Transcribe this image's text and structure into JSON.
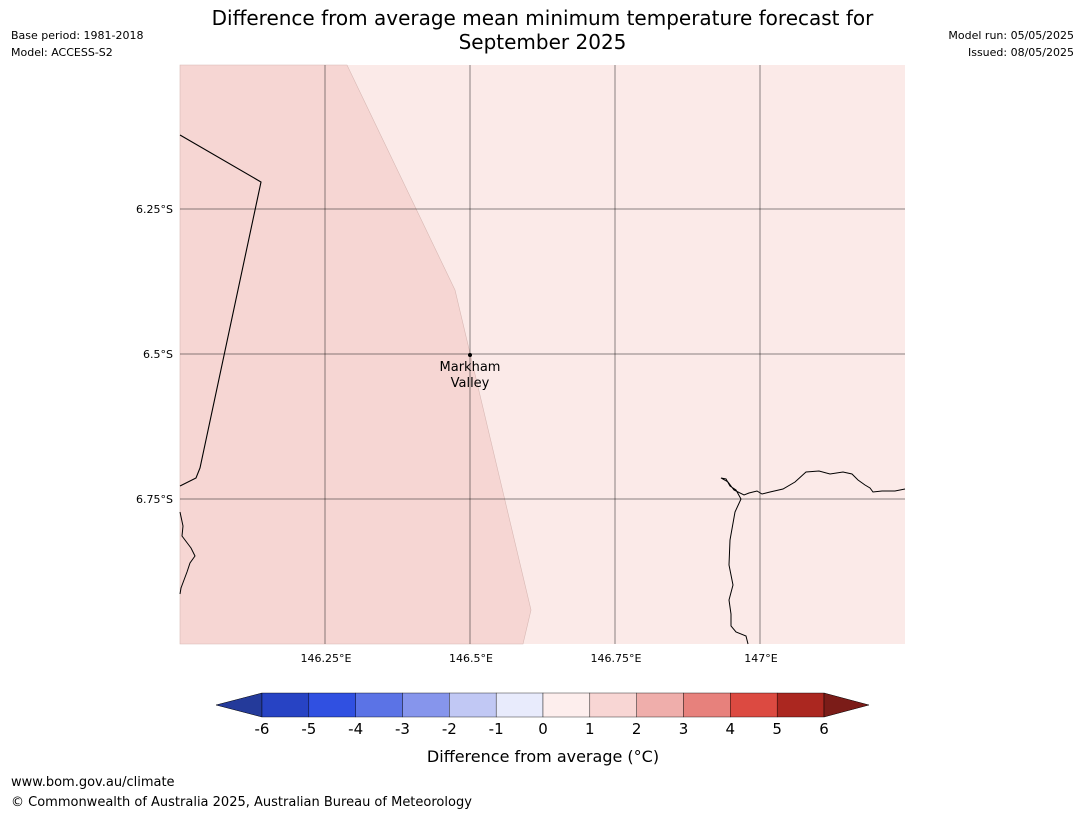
{
  "title_line1": "Difference from average mean minimum temperature forecast for",
  "title_line2": "September 2025",
  "meta_left": {
    "base_period": "Base period: 1981-2018",
    "model": "Model: ACCESS-S2"
  },
  "meta_right": {
    "model_run": "Model run: 05/05/2025",
    "issued": "Issued: 08/05/2025"
  },
  "map": {
    "lat_ticks": [
      "6.25°S",
      "6.5°S",
      "6.75°S"
    ],
    "lon_ticks": [
      "146.25°E",
      "146.5°E",
      "146.75°E",
      "147°E"
    ],
    "location": {
      "name_line1": "Markham",
      "name_line2": "Valley"
    },
    "fill_colors": {
      "band_1_2": "#f6d6d3",
      "band_0_1": "#fbeae8"
    }
  },
  "colorbar": {
    "label": "Difference from average (°C)",
    "ticks": [
      "-6",
      "-5",
      "-4",
      "-3",
      "-2",
      "-1",
      "0",
      "1",
      "2",
      "3",
      "4",
      "5",
      "6"
    ],
    "colors": [
      "#243a9a",
      "#2743c4",
      "#3050e1",
      "#5b73e6",
      "#8695ec",
      "#c1c8f4",
      "#e8ebfc",
      "#fdeeed",
      "#f8d6d4",
      "#efaeab",
      "#e7817c",
      "#dc4a41",
      "#ab2720",
      "#7b1c18"
    ]
  },
  "footer": {
    "url": "www.bom.gov.au/climate",
    "copyright": "© Commonwealth of Australia 2025, Australian Bureau of Meteorology"
  }
}
